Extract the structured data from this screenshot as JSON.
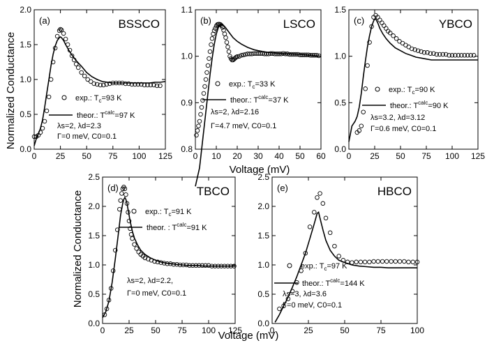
{
  "figure": {
    "ylabel_top": "Normalized Conductance",
    "ylabel_bottom": "Normalized Conductance",
    "xlabel_top": "Voltage (mV)",
    "xlabel_bottom": "Voltage (mV)"
  },
  "chart_data": [
    {
      "type": "line",
      "panel_label": "(a)",
      "title": "BSSCO",
      "xlim": [
        0,
        125
      ],
      "ylim": [
        0.0,
        2.0
      ],
      "xticks": [
        "0",
        "25",
        "50",
        "75",
        "100",
        "125"
      ],
      "yticks": [
        "0.0",
        "0.5",
        "1.0",
        "1.5",
        "2.0"
      ],
      "legend": {
        "exp": {
          "label": "exp.:",
          "tc": "T",
          "tc_sub": "c",
          "tc_val": "=93 K"
        },
        "theor": {
          "label": "theor.:",
          "tc": "T",
          "tc_sub": "c",
          "tc_sup": "calc",
          "tc_val": "=97 K"
        },
        "line3": "λs=2,    λd=2.3",
        "line4": "Γ=0 meV, C0=0.1"
      },
      "series": [
        {
          "kind": "exp",
          "x": [
            0,
            2,
            4,
            6,
            8,
            10,
            12,
            14,
            16,
            18,
            20,
            22,
            24,
            25,
            26,
            28,
            30,
            32,
            34,
            36,
            38,
            40,
            42,
            45,
            48,
            51,
            54,
            57,
            60,
            63,
            66,
            69,
            72,
            75,
            78,
            81,
            84,
            87,
            90,
            93,
            96,
            99,
            102,
            105,
            108,
            111,
            114,
            117,
            120
          ],
          "y": [
            0.18,
            0.18,
            0.2,
            0.24,
            0.3,
            0.4,
            0.55,
            0.75,
            1.0,
            1.25,
            1.45,
            1.62,
            1.7,
            1.72,
            1.71,
            1.66,
            1.58,
            1.5,
            1.42,
            1.34,
            1.28,
            1.22,
            1.17,
            1.1,
            1.05,
            1.0,
            0.97,
            0.94,
            0.93,
            0.92,
            0.92,
            0.93,
            0.94,
            0.95,
            0.95,
            0.95,
            0.95,
            0.94,
            0.94,
            0.93,
            0.93,
            0.93,
            0.93,
            0.92,
            0.92,
            0.92,
            0.92,
            0.91,
            0.91
          ]
        },
        {
          "kind": "theor",
          "x": [
            0,
            2,
            4,
            6,
            8,
            10,
            12,
            14,
            16,
            18,
            20,
            22,
            24,
            25,
            26,
            28,
            30,
            33,
            36,
            40,
            45,
            50,
            55,
            60,
            65,
            70,
            75,
            80,
            85,
            90,
            95,
            100,
            105,
            110,
            115,
            120,
            125
          ],
          "y": [
            0.05,
            0.15,
            0.22,
            0.3,
            0.42,
            0.6,
            0.8,
            1.0,
            1.2,
            1.36,
            1.48,
            1.56,
            1.6,
            1.61,
            1.6,
            1.56,
            1.5,
            1.42,
            1.35,
            1.27,
            1.19,
            1.1,
            1.04,
            1.0,
            0.97,
            0.96,
            0.95,
            0.95,
            0.95,
            0.95,
            0.95,
            0.95,
            0.95,
            0.95,
            0.96,
            0.96,
            0.97
          ]
        }
      ]
    },
    {
      "type": "line",
      "panel_label": "(b)",
      "title": "LSCO",
      "xlim": [
        0,
        60
      ],
      "ylim": [
        0.8,
        1.1
      ],
      "xticks": [
        "0",
        "10",
        "20",
        "30",
        "40",
        "50",
        "60"
      ],
      "yticks": [
        "0.8",
        "0.9",
        "1.0",
        "1.1"
      ],
      "legend": {
        "exp": {
          "label": "exp.:",
          "tc": "T",
          "tc_sub": "c",
          "tc_val": "=33 K"
        },
        "theor": {
          "label": "theor.:",
          "tc": "T",
          "tc_sub": "c",
          "tc_sup": "calc",
          "tc_val": "=37 K"
        },
        "line3": "λs=2,    λd=2.16",
        "line4": "Γ=4.7 meV, C0=0.1"
      },
      "series": [
        {
          "kind": "exp",
          "x": [
            0.5,
            1,
            1.5,
            2,
            2.5,
            3,
            3.5,
            4,
            4.5,
            5,
            5.5,
            6,
            6.5,
            7,
            7.5,
            8,
            8.5,
            9,
            9.5,
            10,
            10.5,
            11,
            11.5,
            12,
            12.5,
            13,
            13.5,
            14,
            14.5,
            15,
            15.5,
            16,
            16.5,
            17,
            17.5,
            18,
            18.5,
            19,
            19.5,
            20,
            21,
            22,
            23,
            24,
            25,
            26,
            27,
            28,
            29,
            30,
            31,
            32,
            33,
            34,
            35,
            36,
            37,
            38,
            39,
            40,
            41,
            42,
            43,
            44,
            45,
            46,
            47,
            48,
            49,
            50,
            51,
            52,
            53,
            54,
            55,
            56,
            57,
            58,
            59
          ],
          "y": [
            0.83,
            0.84,
            0.85,
            0.86,
            0.875,
            0.89,
            0.905,
            0.92,
            0.935,
            0.95,
            0.965,
            0.98,
            0.995,
            1.01,
            1.025,
            1.038,
            1.048,
            1.055,
            1.06,
            1.065,
            1.068,
            1.069,
            1.069,
            1.068,
            1.066,
            1.062,
            1.056,
            1.048,
            1.04,
            1.03,
            1.02,
            1.01,
            1.0,
            0.995,
            0.992,
            0.992,
            0.994,
            0.996,
            0.998,
            0.999,
            1.0,
            1.002,
            1.003,
            1.004,
            1.005,
            1.005,
            1.005,
            1.006,
            1.006,
            1.006,
            1.006,
            1.006,
            1.005,
            1.005,
            1.005,
            1.006,
            1.006,
            1.005,
            1.005,
            1.005,
            1.005,
            1.006,
            1.005,
            1.005,
            1.004,
            1.004,
            1.004,
            1.004,
            1.004,
            1.003,
            1.003,
            1.003,
            1.003,
            1.003,
            1.002,
            1.002,
            1.002,
            1.002,
            1.001
          ]
        },
        {
          "kind": "theor",
          "x": [
            0,
            2,
            3,
            4,
            5,
            6,
            7,
            8,
            9,
            10,
            11,
            12,
            13,
            14,
            15,
            16,
            17,
            18,
            20,
            22,
            25,
            28,
            30,
            35,
            40,
            45,
            50,
            55,
            60
          ],
          "y": [
            0.72,
            0.76,
            0.8,
            0.84,
            0.88,
            0.92,
            0.96,
            0.995,
            1.025,
            1.048,
            1.062,
            1.068,
            1.068,
            1.064,
            1.058,
            1.052,
            1.046,
            1.04,
            1.032,
            1.026,
            1.019,
            1.014,
            1.012,
            1.008,
            1.006,
            1.005,
            1.004,
            1.002,
            1.0
          ]
        }
      ]
    },
    {
      "type": "line",
      "panel_label": "(c)",
      "title": "YBCO",
      "xlim": [
        0,
        125
      ],
      "ylim": [
        0.0,
        1.5
      ],
      "xticks": [
        "0",
        "25",
        "50",
        "75",
        "100",
        "125"
      ],
      "yticks": [
        "0.0",
        "0.5",
        "1.0",
        "1.5"
      ],
      "legend": {
        "exp": {
          "label": "exp.:",
          "tc": "T",
          "tc_sub": "c",
          "tc_val": "=90 K"
        },
        "theor": {
          "label": "theor.:",
          "tc": "T",
          "tc_sub": "c",
          "tc_sup": "calc",
          "tc_val": "=90 K"
        },
        "line3": "λs=3.2, λd=3.12",
        "line4": "Γ=0.6 meV, C0=0.1"
      },
      "series": [
        {
          "kind": "exp",
          "x": [
            8,
            10,
            12,
            14,
            16,
            18,
            20,
            22,
            24,
            26,
            28,
            30,
            32,
            34,
            36,
            38,
            40,
            43,
            46,
            49,
            52,
            55,
            58,
            61,
            64,
            67,
            70,
            73,
            76,
            79,
            82,
            85,
            88,
            91,
            94,
            97,
            100,
            103,
            106,
            109,
            112,
            115,
            118,
            121
          ],
          "y": [
            0.18,
            0.2,
            0.25,
            0.4,
            0.65,
            0.9,
            1.15,
            1.32,
            1.42,
            1.44,
            1.42,
            1.39,
            1.36,
            1.33,
            1.3,
            1.27,
            1.25,
            1.22,
            1.19,
            1.16,
            1.14,
            1.12,
            1.1,
            1.08,
            1.07,
            1.06,
            1.05,
            1.04,
            1.04,
            1.03,
            1.03,
            1.02,
            1.02,
            1.02,
            1.02,
            1.01,
            1.01,
            1.01,
            1.01,
            1.01,
            1.01,
            1.01,
            1.01,
            1.01
          ]
        },
        {
          "kind": "theor",
          "x": [
            0,
            3,
            6,
            8,
            10,
            12,
            14,
            16,
            18,
            20,
            22,
            24,
            25,
            26,
            28,
            30,
            33,
            36,
            40,
            45,
            50,
            55,
            60,
            65,
            70,
            75,
            80,
            85,
            90,
            95,
            100,
            105,
            110,
            115,
            120,
            125
          ],
          "y": [
            0.08,
            0.25,
            0.3,
            0.35,
            0.45,
            0.6,
            0.78,
            0.95,
            1.1,
            1.22,
            1.32,
            1.38,
            1.4,
            1.4,
            1.36,
            1.3,
            1.24,
            1.19,
            1.14,
            1.09,
            1.06,
            1.03,
            1.01,
            0.99,
            0.98,
            0.97,
            0.96,
            0.96,
            0.96,
            0.96,
            0.96,
            0.96,
            0.96,
            0.96,
            0.96,
            0.96
          ]
        }
      ]
    },
    {
      "type": "line",
      "panel_label": "(d)",
      "title": "TBCO",
      "xlim": [
        0,
        125
      ],
      "ylim": [
        0.0,
        2.5
      ],
      "xticks": [
        "0",
        "25",
        "50",
        "75",
        "100",
        "125"
      ],
      "yticks": [
        "0.0",
        "0.5",
        "1.0",
        "1.5",
        "2.0",
        "2.5"
      ],
      "legend": {
        "exp": {
          "label": "exp.:",
          "tc": "T",
          "tc_sub": "c",
          "tc_val": "=91 K"
        },
        "theor": {
          "label": "theor. :",
          "tc": "T",
          "tc_sub": "c",
          "tc_sup": "calc",
          "tc_val": "=91 K"
        },
        "line3": "λs=2, λd=2.2,",
        "line4": "Γ=0 meV, C0=0.1"
      },
      "series": [
        {
          "kind": "exp",
          "x": [
            2,
            4,
            6,
            8,
            10,
            12,
            14,
            16,
            17,
            18,
            19,
            20,
            21,
            22,
            23,
            24,
            25,
            26,
            27,
            28,
            30,
            32,
            34,
            36,
            38,
            40,
            43,
            46,
            49,
            52,
            55,
            58,
            61,
            64,
            67,
            70,
            73,
            76,
            79,
            82,
            85,
            88,
            91,
            94,
            97,
            100,
            103,
            106,
            109,
            112,
            115,
            118,
            121,
            124
          ],
          "y": [
            0.15,
            0.25,
            0.4,
            0.6,
            0.9,
            1.25,
            1.6,
            1.95,
            2.1,
            2.22,
            2.3,
            2.33,
            2.3,
            2.2,
            2.05,
            1.9,
            1.75,
            1.62,
            1.52,
            1.45,
            1.35,
            1.28,
            1.22,
            1.18,
            1.15,
            1.12,
            1.1,
            1.08,
            1.06,
            1.05,
            1.04,
            1.03,
            1.02,
            1.02,
            1.01,
            1.01,
            1.0,
            1.0,
            1.0,
            0.99,
            0.99,
            0.99,
            0.99,
            0.99,
            0.99,
            0.99,
            0.98,
            0.98,
            0.98,
            0.98,
            0.98,
            0.98,
            0.98,
            0.98
          ]
        },
        {
          "kind": "theor",
          "x": [
            0,
            3,
            6,
            9,
            12,
            15,
            17,
            19,
            20,
            21,
            22,
            23,
            24,
            26,
            28,
            30,
            33,
            36,
            40,
            45,
            50,
            55,
            60,
            65,
            70,
            75,
            80,
            85,
            90,
            95,
            100,
            105,
            110,
            115,
            120,
            125
          ],
          "y": [
            0.1,
            0.2,
            0.38,
            0.7,
            1.1,
            1.55,
            1.85,
            2.05,
            2.12,
            2.15,
            2.12,
            2.05,
            1.95,
            1.75,
            1.58,
            1.46,
            1.34,
            1.25,
            1.18,
            1.12,
            1.08,
            1.05,
            1.03,
            1.02,
            1.01,
            1.0,
            0.99,
            0.99,
            0.99,
            0.98,
            0.98,
            0.98,
            0.98,
            0.98,
            0.98,
            0.98
          ]
        }
      ]
    },
    {
      "type": "line",
      "panel_label": "(e)",
      "title": "HBCO",
      "xlim": [
        0,
        100
      ],
      "ylim": [
        0.0,
        2.5
      ],
      "xticks": [
        "0",
        "25",
        "50",
        "75",
        "100"
      ],
      "yticks": [
        "0.0",
        "0.5",
        "1.0",
        "1.5",
        "2.0",
        "2.5"
      ],
      "legend": {
        "exp": {
          "label": "exp.:",
          "tc": "T",
          "tc_sub": "c",
          "tc_val": "=97 K"
        },
        "theor": {
          "label": "theor.:",
          "tc": "T",
          "tc_sub": "c",
          "tc_sup": "calc",
          "tc_val": "=144 K"
        },
        "line3": "λs=3,      λd=3.6",
        "line4": "Γ=0 meV, C0=0.1"
      },
      "series": [
        {
          "kind": "exp",
          "x": [
            5,
            8,
            11,
            14,
            17,
            20,
            23,
            26,
            29,
            31,
            33,
            35,
            37,
            40,
            43,
            46,
            49,
            52,
            55,
            58,
            61,
            64,
            67,
            70,
            73,
            76,
            79,
            82,
            85,
            88,
            91,
            94,
            97,
            100
          ],
          "y": [
            0.25,
            0.3,
            0.42,
            0.55,
            0.7,
            0.9,
            1.2,
            1.65,
            1.9,
            2.15,
            2.22,
            2.05,
            1.8,
            1.55,
            1.32,
            1.15,
            1.08,
            1.05,
            1.04,
            1.05,
            1.05,
            1.05,
            1.05,
            1.06,
            1.06,
            1.06,
            1.06,
            1.06,
            1.06,
            1.06,
            1.06,
            1.05,
            1.05,
            1.05
          ]
        },
        {
          "kind": "theor",
          "x": [
            2,
            5,
            8,
            11,
            14,
            17,
            20,
            23,
            26,
            29,
            31,
            32,
            33,
            35,
            37,
            40,
            43,
            46,
            50,
            55,
            60,
            65,
            70,
            75,
            80,
            85,
            90,
            95,
            100
          ],
          "y": [
            0.02,
            0.15,
            0.3,
            0.45,
            0.62,
            0.8,
            1.0,
            1.2,
            1.45,
            1.7,
            1.88,
            1.9,
            1.8,
            1.6,
            1.42,
            1.25,
            1.15,
            1.08,
            1.04,
            1.0,
            0.98,
            0.97,
            0.96,
            0.96,
            0.95,
            0.95,
            0.95,
            0.95,
            0.95
          ]
        }
      ]
    }
  ]
}
